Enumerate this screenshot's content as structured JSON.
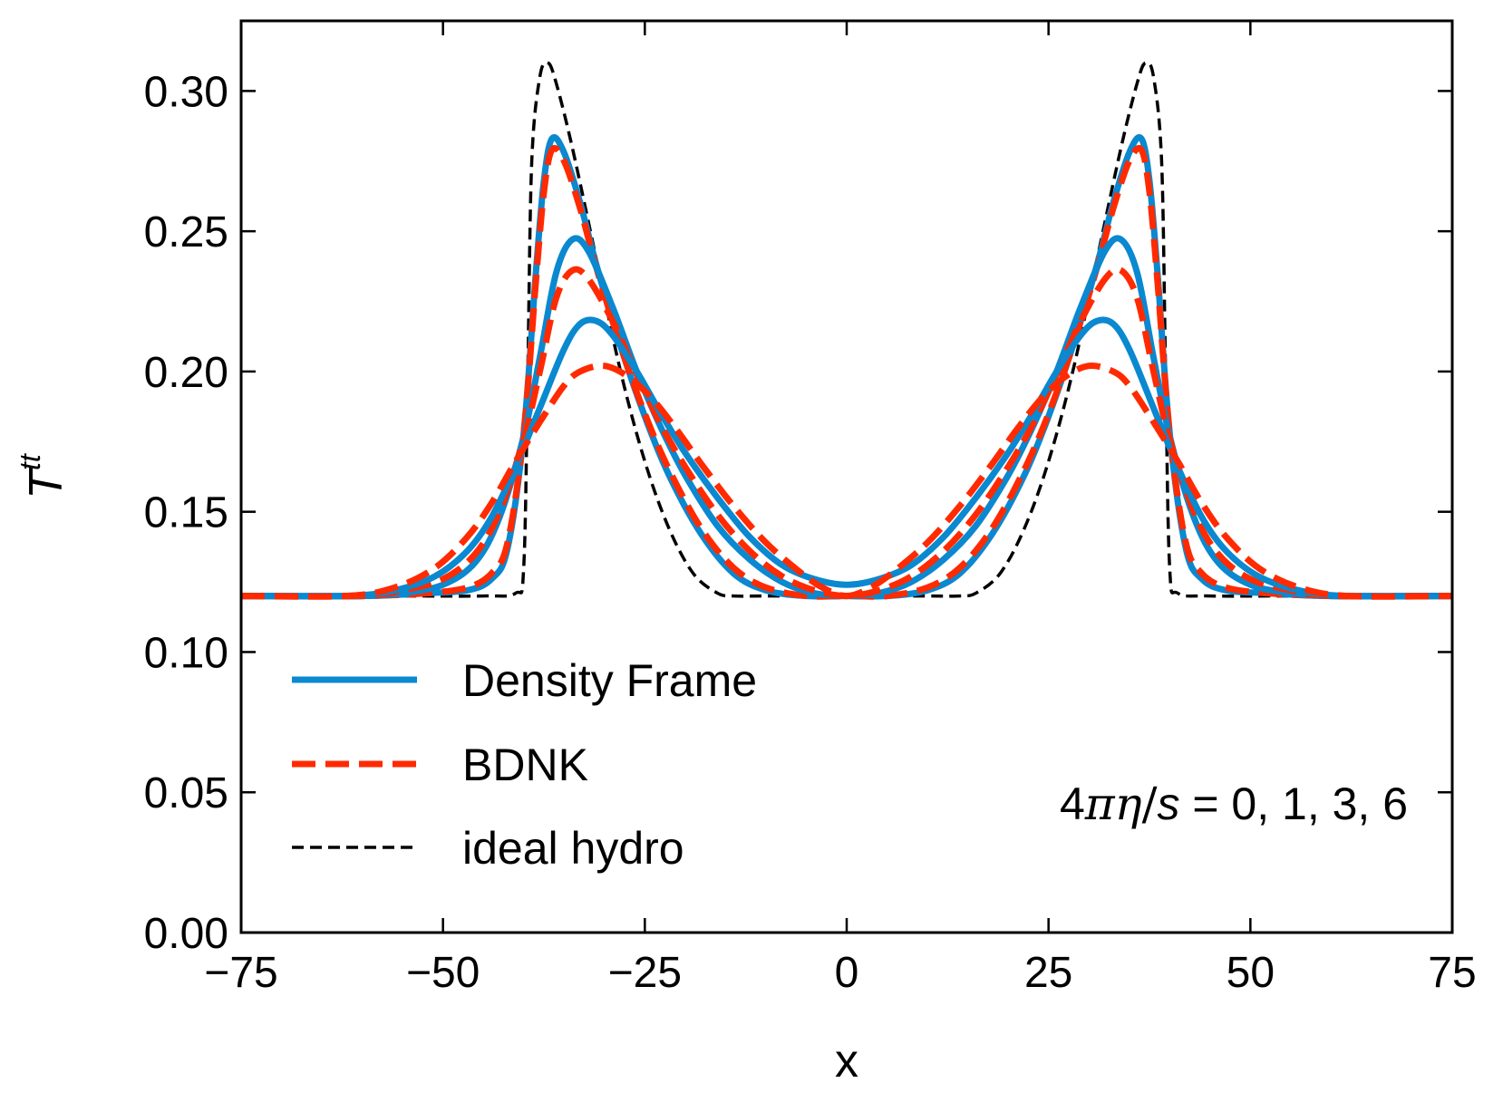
{
  "chart_data": {
    "type": "line",
    "title": "",
    "xlabel": "x",
    "ylabel_main": "T",
    "ylabel_sup": "tt",
    "xlim": [
      -75,
      75
    ],
    "ylim": [
      0.0,
      0.325
    ],
    "grid": false,
    "legend_position": "lower-left",
    "xticks": [
      -75,
      -50,
      -25,
      0,
      25,
      50,
      75
    ],
    "xtick_labels": [
      "−75",
      "−50",
      "−25",
      "0",
      "25",
      "50",
      "75"
    ],
    "yticks": [
      0.0,
      0.05,
      0.1,
      0.15,
      0.2,
      0.25,
      0.3
    ],
    "ytick_labels": [
      "0.00",
      "0.05",
      "0.10",
      "0.15",
      "0.20",
      "0.25",
      "0.30"
    ],
    "annotation": {
      "prefix": "4",
      "symbols": "πη",
      "slash": "/",
      "italic_s": "s",
      "values": " = 0, 1, 3, 6"
    },
    "legend": [
      {
        "label": "Density Frame",
        "color": "#0a88d0",
        "style": "solid"
      },
      {
        "label": "BDNK",
        "color": "#ff2a00",
        "style": "dashed"
      },
      {
        "label": "ideal hydro",
        "color": "#000000",
        "style": "dashed-thin"
      }
    ],
    "series": [
      {
        "name": "ideal hydro",
        "eta_over_s": 0,
        "color": "#000000",
        "style": "dashed-thin",
        "x": [
          -75,
          -55,
          -45,
          -41,
          -40,
          -39.5,
          -39,
          -38,
          -37,
          -36,
          -34,
          -31,
          -28,
          -25,
          -22,
          -19,
          -16,
          -14,
          -10,
          0,
          10,
          14,
          16,
          19,
          22,
          25,
          28,
          31,
          34,
          36,
          37,
          38,
          39,
          39.5,
          40,
          41,
          45,
          55,
          75
        ],
        "y": [
          0.12,
          0.12,
          0.12,
          0.121,
          0.13,
          0.2,
          0.275,
          0.305,
          0.31,
          0.303,
          0.28,
          0.24,
          0.2,
          0.168,
          0.144,
          0.128,
          0.121,
          0.12,
          0.12,
          0.12,
          0.12,
          0.12,
          0.121,
          0.128,
          0.144,
          0.168,
          0.2,
          0.24,
          0.28,
          0.303,
          0.31,
          0.305,
          0.275,
          0.2,
          0.13,
          0.121,
          0.12,
          0.12,
          0.12
        ]
      },
      {
        "name": "Density Frame",
        "eta_over_s": 1,
        "color": "#0a88d0",
        "style": "solid",
        "x": [
          -75,
          -60,
          -52,
          -47,
          -44,
          -42,
          -40,
          -38.5,
          -37.5,
          -36.5,
          -35,
          -33,
          -31,
          -28,
          -25,
          -22,
          -18,
          -14,
          -10,
          -5,
          0,
          5,
          10,
          14,
          18,
          22,
          25,
          28,
          31,
          33,
          35,
          36.5,
          37.5,
          38.5,
          40,
          42,
          44,
          47,
          52,
          60,
          75
        ],
        "y": [
          0.12,
          0.12,
          0.121,
          0.122,
          0.126,
          0.137,
          0.178,
          0.235,
          0.268,
          0.283,
          0.278,
          0.26,
          0.238,
          0.209,
          0.184,
          0.163,
          0.142,
          0.128,
          0.122,
          0.12,
          0.12,
          0.12,
          0.122,
          0.128,
          0.142,
          0.163,
          0.184,
          0.209,
          0.238,
          0.26,
          0.278,
          0.283,
          0.268,
          0.235,
          0.178,
          0.137,
          0.126,
          0.122,
          0.121,
          0.12,
          0.12
        ]
      },
      {
        "name": "BDNK",
        "eta_over_s": 1,
        "color": "#ff2a00",
        "style": "dashed",
        "x": [
          -75,
          -60,
          -52,
          -47,
          -44,
          -42,
          -40,
          -38.5,
          -37.5,
          -36.5,
          -35,
          -33,
          -31,
          -28,
          -25,
          -22,
          -18,
          -14,
          -10,
          -5,
          0,
          5,
          10,
          14,
          18,
          22,
          25,
          28,
          31,
          33,
          35,
          36.5,
          37.5,
          38.5,
          40,
          42,
          44,
          47,
          52,
          60,
          75
        ],
        "y": [
          0.12,
          0.12,
          0.121,
          0.123,
          0.128,
          0.139,
          0.178,
          0.232,
          0.264,
          0.279,
          0.275,
          0.258,
          0.237,
          0.209,
          0.185,
          0.165,
          0.144,
          0.13,
          0.123,
          0.12,
          0.12,
          0.12,
          0.123,
          0.13,
          0.144,
          0.165,
          0.185,
          0.209,
          0.237,
          0.258,
          0.275,
          0.279,
          0.264,
          0.232,
          0.178,
          0.139,
          0.128,
          0.123,
          0.121,
          0.12,
          0.12
        ]
      },
      {
        "name": "Density Frame",
        "eta_over_s": 3,
        "color": "#0a88d0",
        "style": "solid",
        "x": [
          -75,
          -60,
          -55,
          -50,
          -46,
          -43,
          -40,
          -38,
          -36,
          -34,
          -32,
          -29,
          -26,
          -23,
          -20,
          -16,
          -12,
          -8,
          -4,
          0,
          4,
          8,
          12,
          16,
          20,
          23,
          26,
          29,
          32,
          34,
          36,
          38,
          40,
          43,
          46,
          50,
          55,
          60,
          75
        ],
        "y": [
          0.12,
          0.12,
          0.121,
          0.124,
          0.132,
          0.148,
          0.177,
          0.205,
          0.235,
          0.247,
          0.243,
          0.223,
          0.2,
          0.18,
          0.163,
          0.145,
          0.133,
          0.125,
          0.121,
          0.12,
          0.121,
          0.125,
          0.133,
          0.145,
          0.163,
          0.18,
          0.2,
          0.223,
          0.243,
          0.247,
          0.235,
          0.205,
          0.177,
          0.148,
          0.132,
          0.124,
          0.121,
          0.12,
          0.12
        ]
      },
      {
        "name": "BDNK",
        "eta_over_s": 3,
        "color": "#ff2a00",
        "style": "dashed",
        "x": [
          -75,
          -60,
          -55,
          -50,
          -46,
          -43,
          -40,
          -38,
          -36,
          -34,
          -32,
          -29,
          -26,
          -23,
          -20,
          -16,
          -12,
          -8,
          -4,
          0,
          4,
          8,
          12,
          16,
          20,
          23,
          26,
          29,
          32,
          34,
          36,
          38,
          40,
          43,
          46,
          50,
          55,
          60,
          75
        ],
        "y": [
          0.12,
          0.12,
          0.122,
          0.126,
          0.135,
          0.15,
          0.176,
          0.2,
          0.226,
          0.236,
          0.233,
          0.218,
          0.199,
          0.181,
          0.166,
          0.149,
          0.136,
          0.127,
          0.122,
          0.12,
          0.122,
          0.127,
          0.136,
          0.149,
          0.166,
          0.181,
          0.199,
          0.218,
          0.233,
          0.236,
          0.226,
          0.2,
          0.176,
          0.15,
          0.135,
          0.126,
          0.122,
          0.12,
          0.12
        ]
      },
      {
        "name": "Density Frame",
        "eta_over_s": 6,
        "color": "#0a88d0",
        "style": "solid",
        "x": [
          -75,
          -62,
          -56,
          -51,
          -47,
          -44,
          -41,
          -38,
          -35,
          -33,
          -31,
          -29,
          -26,
          -23,
          -20,
          -16,
          -12,
          -8,
          -4,
          0,
          4,
          8,
          12,
          16,
          20,
          23,
          26,
          29,
          31,
          33,
          35,
          38,
          41,
          44,
          47,
          51,
          56,
          62,
          75
        ],
        "y": [
          0.12,
          0.12,
          0.122,
          0.127,
          0.136,
          0.148,
          0.166,
          0.187,
          0.208,
          0.217,
          0.218,
          0.213,
          0.2,
          0.185,
          0.171,
          0.155,
          0.141,
          0.131,
          0.126,
          0.124,
          0.126,
          0.131,
          0.141,
          0.155,
          0.171,
          0.185,
          0.2,
          0.213,
          0.218,
          0.217,
          0.208,
          0.187,
          0.166,
          0.148,
          0.136,
          0.127,
          0.122,
          0.12,
          0.12
        ]
      },
      {
        "name": "BDNK",
        "eta_over_s": 6,
        "color": "#ff2a00",
        "style": "dashed",
        "x": [
          -75,
          -62,
          -56,
          -51,
          -47,
          -44,
          -41,
          -38,
          -35,
          -33,
          -30,
          -27,
          -24,
          -21,
          -18,
          -14,
          -10,
          -6,
          -3,
          0,
          3,
          6,
          10,
          14,
          18,
          21,
          24,
          27,
          30,
          33,
          35,
          38,
          41,
          44,
          47,
          51,
          56,
          62,
          75
        ],
        "y": [
          0.12,
          0.12,
          0.123,
          0.13,
          0.141,
          0.153,
          0.168,
          0.182,
          0.195,
          0.2,
          0.202,
          0.198,
          0.19,
          0.179,
          0.167,
          0.152,
          0.139,
          0.129,
          0.123,
          0.12,
          0.123,
          0.129,
          0.139,
          0.152,
          0.167,
          0.179,
          0.19,
          0.198,
          0.202,
          0.2,
          0.195,
          0.182,
          0.168,
          0.153,
          0.141,
          0.13,
          0.123,
          0.12,
          0.12
        ]
      }
    ]
  }
}
